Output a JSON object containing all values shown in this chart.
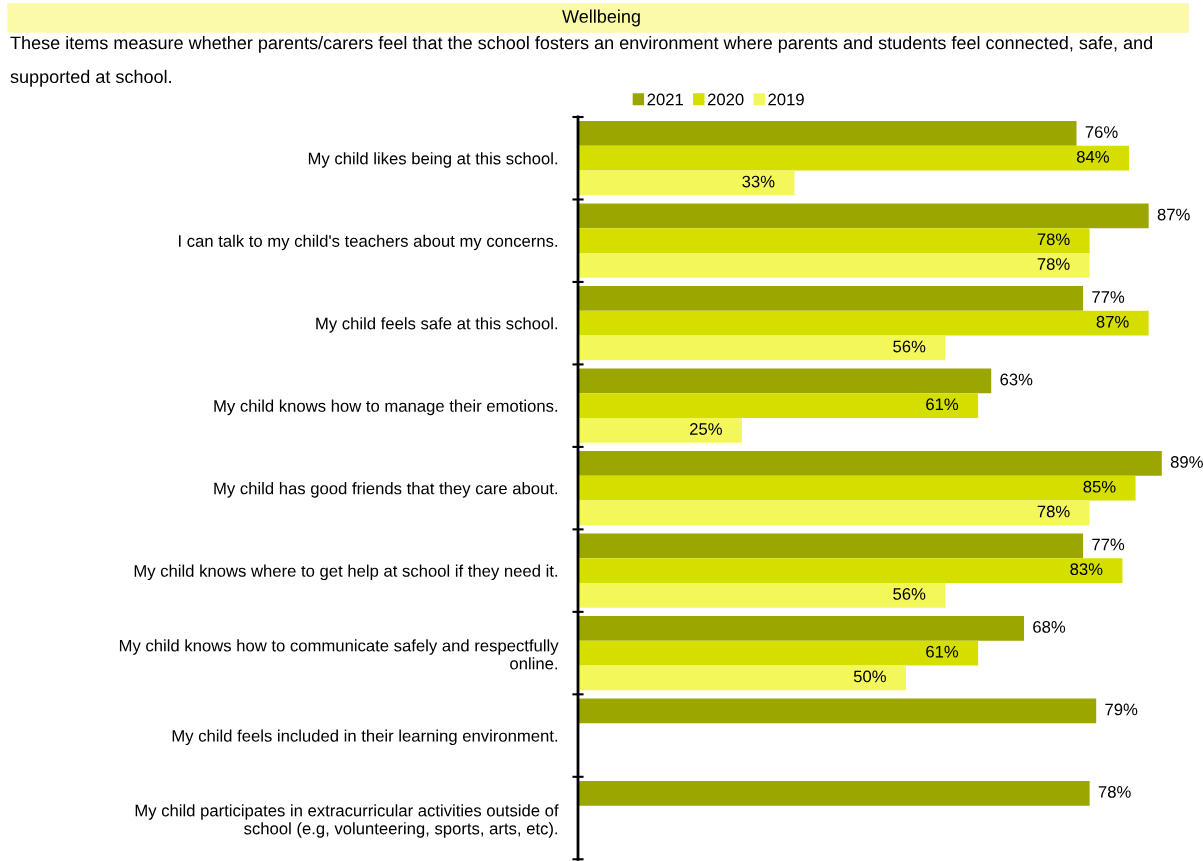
{
  "chart_data": {
    "type": "bar",
    "orientation": "horizontal",
    "title": "Wellbeing",
    "subtitle": "These items measure whether parents/carers feel that the school fosters an environment where parents and students feel connected, safe, and supported at school.",
    "categories": [
      "My child likes being at this school.",
      "I can talk to my child's teachers about my concerns.",
      "My child feels safe at this school.",
      "My child knows how to manage their emotions.",
      "My child has good friends that they care about.",
      "My child knows where to get help at school if they need it.",
      "My child knows how to communicate safely and respectfully\nonline.",
      "My child feels included in their learning environment.",
      "My child participates in extracurricular activities outside of\nschool (e.g, volunteering, sports, arts, etc)."
    ],
    "series": [
      {
        "name": "2021",
        "color": "#9ca600",
        "values": [
          76,
          87,
          77,
          63,
          89,
          77,
          68,
          79,
          78
        ],
        "value_labels": [
          "76%",
          "87%",
          "77%",
          "63%",
          "89%",
          "77%",
          "68%",
          "79%",
          "78%"
        ]
      },
      {
        "name": "2020",
        "color": "#d4df00",
        "values": [
          84,
          78,
          87,
          61,
          85,
          83,
          61,
          null,
          null
        ],
        "value_labels": [
          "84%",
          "78%",
          "87%",
          "61%",
          "85%",
          "83%",
          "61%",
          null,
          null
        ]
      },
      {
        "name": "2019",
        "color": "#f4f75a",
        "values": [
          33,
          78,
          56,
          25,
          78,
          56,
          50,
          null,
          null
        ],
        "value_labels": [
          "33%",
          "78%",
          "56%",
          "25%",
          "78%",
          "56%",
          "50%",
          null,
          null
        ]
      }
    ],
    "legend": "top",
    "grid": false,
    "tick_labels": "y"
  }
}
